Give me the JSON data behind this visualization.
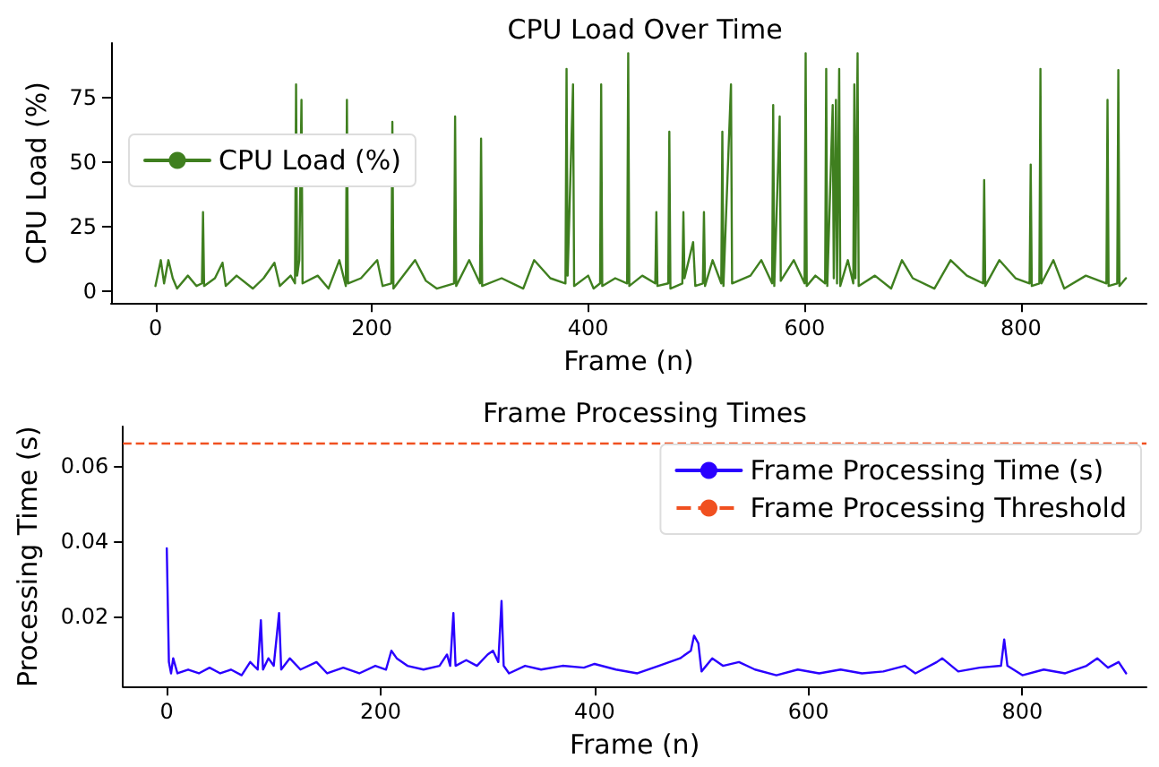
{
  "chart_data": [
    {
      "type": "line",
      "title": "CPU Load Over Time",
      "xlabel": "Frame (n)",
      "ylabel": "CPU Load (%)",
      "xlim": [
        -41,
        916
      ],
      "xticks": [
        0,
        200,
        400,
        600,
        800
      ],
      "ylim": [
        -4.6,
        96
      ],
      "yticks": [
        0,
        25,
        50,
        75
      ],
      "grid": false,
      "legend": "center left",
      "marker": "none",
      "line_style": "solid",
      "series": [
        {
          "name": "CPU Load (%)",
          "color": "#3f7f1f",
          "x": [
            0,
            5,
            8,
            12,
            16,
            20,
            30,
            38,
            43,
            44,
            45,
            55,
            62,
            65,
            75,
            90,
            100,
            110,
            115,
            125,
            129,
            130,
            131,
            133,
            135,
            136,
            150,
            160,
            170,
            176,
            177,
            178,
            190,
            205,
            210,
            218,
            219,
            220,
            240,
            250,
            260,
            276,
            277,
            278,
            290,
            300,
            301,
            302,
            320,
            340,
            350,
            365,
            379,
            380,
            381,
            386,
            387,
            400,
            405,
            411,
            412,
            413,
            425,
            436,
            437,
            438,
            450,
            462,
            463,
            464,
            474,
            475,
            476,
            487,
            488,
            489,
            497,
            499,
            506,
            507,
            508,
            515,
            523,
            524,
            525,
            532,
            533,
            550,
            560,
            570,
            571,
            572,
            577,
            578,
            590,
            600,
            601,
            602,
            610,
            619,
            620,
            621,
            626,
            627,
            629,
            630,
            632,
            633,
            640,
            645,
            646,
            647,
            649,
            650,
            665,
            680,
            690,
            700,
            720,
            735,
            750,
            765,
            766,
            767,
            780,
            795,
            808,
            809,
            810,
            817,
            818,
            819,
            830,
            840,
            860,
            879,
            880,
            881,
            889,
            890,
            891,
            897
          ],
          "values": [
            2,
            12,
            3,
            12,
            5,
            1,
            6,
            2,
            3,
            30.6,
            2,
            5,
            11,
            2,
            6,
            1,
            5,
            11,
            2,
            6,
            3,
            80,
            6,
            12,
            74,
            3,
            6,
            1,
            12,
            2,
            74,
            3,
            5,
            12,
            2,
            3,
            65.5,
            1,
            12,
            4,
            1,
            3,
            67.6,
            2,
            12,
            3,
            59,
            2,
            5,
            1,
            12,
            5,
            3,
            86,
            6,
            80,
            2,
            6,
            1,
            3,
            80,
            2,
            5,
            3,
            92,
            2,
            6,
            3,
            30.6,
            2,
            3,
            61.7,
            1,
            3,
            30.6,
            5,
            19,
            2,
            3,
            30.6,
            2,
            12,
            3,
            61.7,
            2,
            80,
            3,
            6,
            12,
            3,
            72,
            2,
            67.6,
            4,
            12,
            3,
            92,
            2,
            6,
            3,
            86,
            2,
            72,
            5,
            74,
            3,
            86,
            2,
            12,
            3,
            80,
            5,
            92,
            2,
            6,
            1,
            12,
            5,
            1,
            12,
            6,
            3,
            43,
            2,
            12,
            5,
            3,
            49,
            2,
            3,
            86,
            3,
            12,
            1,
            6,
            3,
            74,
            2,
            3,
            85.5,
            2,
            5
          ]
        }
      ]
    },
    {
      "type": "line",
      "title": "Frame Processing Times",
      "xlabel": "Frame (n)",
      "ylabel": "Processing Time (s)",
      "xlim": [
        -41,
        916
      ],
      "xticks": [
        0,
        200,
        400,
        600,
        800
      ],
      "ylim": [
        0.0015,
        0.0705
      ],
      "yticks": [
        0.02,
        0.04,
        0.06
      ],
      "grid": false,
      "legend": "top right",
      "marker": "none",
      "line_style": "solid",
      "series": [
        {
          "name": "Frame Processing Time (s)",
          "color": "#2a00ff",
          "x": [
            0,
            2,
            4,
            6,
            10,
            20,
            30,
            40,
            50,
            60,
            70,
            78,
            85,
            88,
            90,
            95,
            100,
            105,
            107,
            115,
            125,
            140,
            150,
            165,
            180,
            195,
            205,
            210,
            215,
            225,
            240,
            255,
            262,
            265,
            268,
            270,
            280,
            290,
            300,
            305,
            310,
            313,
            315,
            320,
            335,
            350,
            370,
            390,
            400,
            420,
            440,
            460,
            480,
            490,
            493,
            497,
            500,
            510,
            520,
            535,
            550,
            570,
            590,
            610,
            630,
            650,
            670,
            690,
            700,
            720,
            725,
            740,
            760,
            780,
            783,
            786,
            800,
            820,
            840,
            860,
            870,
            880,
            890,
            897
          ],
          "values": [
            0.0382,
            0.008,
            0.005,
            0.009,
            0.005,
            0.006,
            0.005,
            0.0065,
            0.005,
            0.006,
            0.0045,
            0.008,
            0.006,
            0.0191,
            0.006,
            0.009,
            0.007,
            0.021,
            0.006,
            0.009,
            0.006,
            0.008,
            0.005,
            0.0065,
            0.005,
            0.007,
            0.006,
            0.011,
            0.009,
            0.007,
            0.006,
            0.007,
            0.01,
            0.007,
            0.021,
            0.007,
            0.0085,
            0.007,
            0.01,
            0.011,
            0.008,
            0.0242,
            0.007,
            0.005,
            0.007,
            0.006,
            0.007,
            0.0065,
            0.0075,
            0.006,
            0.005,
            0.007,
            0.009,
            0.011,
            0.015,
            0.013,
            0.0055,
            0.009,
            0.007,
            0.008,
            0.006,
            0.0045,
            0.006,
            0.005,
            0.006,
            0.005,
            0.0055,
            0.007,
            0.005,
            0.008,
            0.009,
            0.0055,
            0.0065,
            0.007,
            0.014,
            0.007,
            0.0045,
            0.006,
            0.005,
            0.007,
            0.009,
            0.0065,
            0.008,
            0.005
          ]
        }
      ],
      "ref_lines": [
        {
          "axis": "y",
          "value": 0.066,
          "label": "Frame Processing Threshold",
          "color": "#f05020",
          "line_style": "dashed"
        }
      ]
    }
  ]
}
